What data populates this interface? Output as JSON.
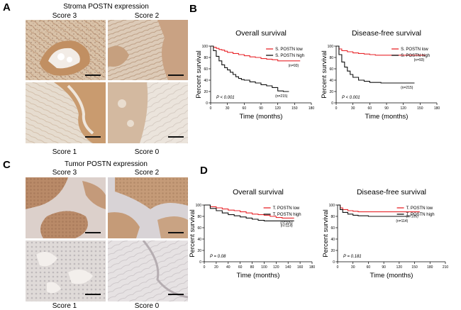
{
  "panelA": {
    "letter": "A",
    "title": "Stroma POSTN expression",
    "scores": [
      "Score 3",
      "Score 2",
      "Score 1",
      "Score 0"
    ]
  },
  "panelC": {
    "letter": "C",
    "title": "Tumor POSTN expression",
    "scores": [
      "Score 3",
      "Score 2",
      "Score 1",
      "Score 0"
    ]
  },
  "panelB": {
    "letter": "B"
  },
  "panelD": {
    "letter": "D"
  },
  "colors": {
    "low": "#e8262b",
    "high": "#111111",
    "stainStrong": "#b07a4e",
    "stainBlue": "#c9ccd6"
  },
  "chart_data": [
    {
      "id": "B-overall",
      "type": "line",
      "title": "Overall survival",
      "xlabel": "Time (months)",
      "ylabel": "Percent survival",
      "xlim": [
        0,
        180
      ],
      "ylim": [
        0,
        100
      ],
      "xticks": [
        0,
        30,
        60,
        90,
        120,
        150,
        180
      ],
      "yticks": [
        0,
        20,
        40,
        60,
        80,
        100
      ],
      "legend": "top-right",
      "pvalue": "P < 0.001",
      "series": [
        {
          "name": "S. POSTN low",
          "color": "#e8262b",
          "n": "(n=93)",
          "x": [
            0,
            5,
            10,
            15,
            20,
            25,
            30,
            40,
            50,
            60,
            70,
            80,
            90,
            100,
            110,
            120,
            130,
            140,
            150,
            160
          ],
          "y": [
            100,
            98,
            96,
            94,
            93,
            91,
            89,
            87,
            85,
            83,
            81,
            80,
            78,
            77,
            76,
            74,
            74,
            74,
            74,
            74
          ]
        },
        {
          "name": "S. POSTN high",
          "color": "#111111",
          "n": "(n=215)",
          "x": [
            0,
            5,
            10,
            15,
            20,
            25,
            30,
            35,
            40,
            45,
            50,
            55,
            60,
            70,
            80,
            90,
            100,
            110,
            120,
            130,
            140
          ],
          "y": [
            100,
            92,
            82,
            74,
            67,
            62,
            58,
            54,
            50,
            46,
            43,
            41,
            40,
            37,
            35,
            32,
            30,
            27,
            21,
            20,
            20
          ]
        }
      ]
    },
    {
      "id": "B-disease-free",
      "type": "line",
      "title": "Disease-free survival",
      "xlabel": "Time (months)",
      "ylabel": "Percent survival",
      "xlim": [
        0,
        180
      ],
      "ylim": [
        0,
        100
      ],
      "xticks": [
        0,
        30,
        60,
        90,
        120,
        150,
        180
      ],
      "yticks": [
        0,
        20,
        40,
        60,
        80,
        100
      ],
      "legend": "top-right",
      "pvalue": "P < 0.001",
      "series": [
        {
          "name": "S. POSTN low",
          "color": "#e8262b",
          "n": "(n=93)",
          "x": [
            0,
            5,
            10,
            20,
            30,
            40,
            50,
            60,
            70,
            80,
            100,
            120,
            140,
            160
          ],
          "y": [
            100,
            95,
            92,
            90,
            88,
            87,
            86,
            85,
            84,
            84,
            84,
            84,
            84,
            84
          ]
        },
        {
          "name": "S. POSTN high",
          "color": "#111111",
          "n": "(n=215)",
          "x": [
            0,
            5,
            10,
            15,
            20,
            25,
            30,
            40,
            50,
            60,
            80,
            100,
            120,
            140
          ],
          "y": [
            100,
            85,
            72,
            63,
            56,
            50,
            45,
            40,
            38,
            36,
            35,
            35,
            35,
            35
          ]
        }
      ]
    },
    {
      "id": "D-overall",
      "type": "line",
      "title": "Overall survival",
      "xlabel": "Time (months)",
      "ylabel": "Percent survival",
      "xlim": [
        0,
        180
      ],
      "ylim": [
        0,
        100
      ],
      "xticks": [
        0,
        20,
        40,
        60,
        80,
        100,
        120,
        140,
        160,
        180
      ],
      "yticks": [
        0,
        20,
        40,
        60,
        80,
        100
      ],
      "legend": "top-right",
      "pvalue": "P = 0.08",
      "series": [
        {
          "name": "T. POSTN low",
          "color": "#e8262b",
          "n": "(n=105)",
          "x": [
            0,
            10,
            20,
            30,
            40,
            50,
            60,
            70,
            80,
            90,
            100,
            110,
            120,
            130,
            140,
            150
          ],
          "y": [
            100,
            97,
            95,
            93,
            91,
            90,
            88,
            86,
            84,
            83,
            82,
            80,
            78,
            77,
            77,
            77
          ]
        },
        {
          "name": "T. POSTN high",
          "color": "#111111",
          "n": "(n=114)",
          "x": [
            0,
            10,
            20,
            30,
            40,
            50,
            60,
            70,
            80,
            90,
            100,
            110,
            120,
            140,
            150
          ],
          "y": [
            100,
            94,
            90,
            86,
            83,
            81,
            79,
            77,
            75,
            73,
            72,
            72,
            72,
            72,
            72
          ]
        }
      ]
    },
    {
      "id": "D-disease-free",
      "type": "line",
      "title": "Disease-free survival",
      "xlabel": "Time (months)",
      "ylabel": "Percent survival",
      "xlim": [
        0,
        210
      ],
      "ylim": [
        0,
        100
      ],
      "xticks": [
        0,
        30,
        60,
        90,
        120,
        150,
        180,
        210
      ],
      "yticks": [
        0,
        20,
        40,
        60,
        80,
        100
      ],
      "legend": "top-right",
      "pvalue": "P = 0.181",
      "series": [
        {
          "name": "T. POSTN low",
          "color": "#e8262b",
          "n": "(n=105)",
          "x": [
            0,
            5,
            10,
            20,
            30,
            40,
            60,
            80,
            100,
            120,
            140,
            160
          ],
          "y": [
            100,
            95,
            92,
            90,
            89,
            88,
            88,
            88,
            88,
            88,
            88,
            88
          ]
        },
        {
          "name": "T. POSTN high",
          "color": "#111111",
          "n": "(n=114)",
          "x": [
            0,
            5,
            10,
            20,
            30,
            40,
            60,
            80,
            100,
            120,
            140
          ],
          "y": [
            100,
            92,
            87,
            84,
            82,
            81,
            80,
            80,
            80,
            80,
            80
          ]
        }
      ]
    }
  ]
}
